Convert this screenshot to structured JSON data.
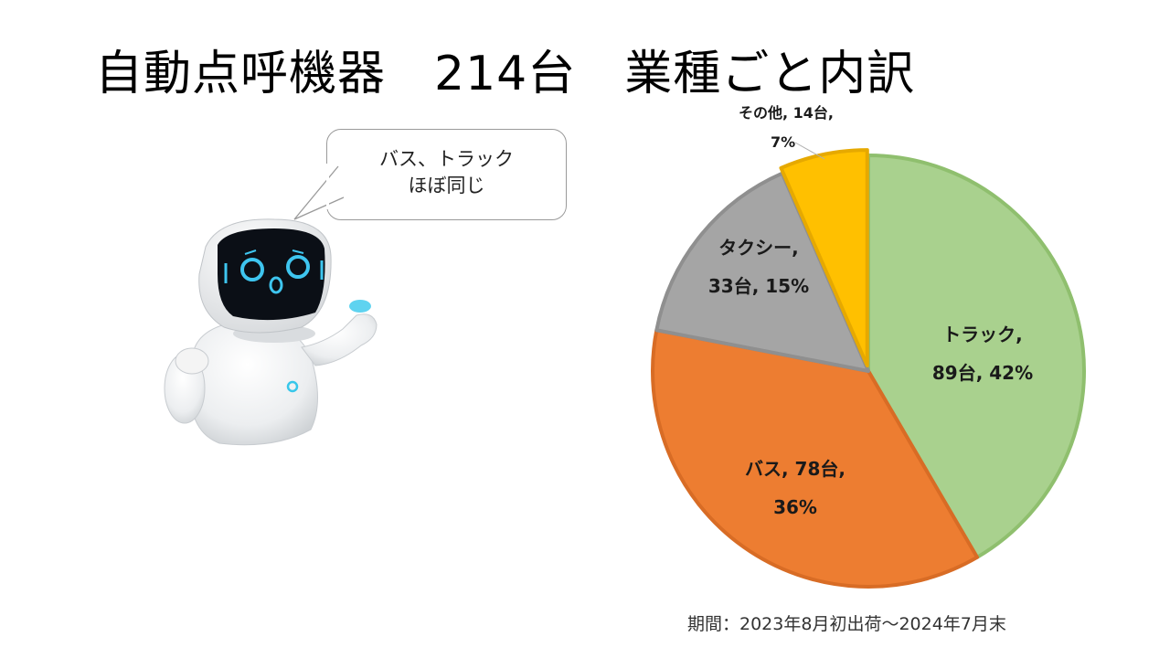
{
  "slide": {
    "title": "自動点呼機器　214台　業種ごと内訳",
    "period": "期間：2023年8月初出荷〜2024年7月末"
  },
  "bubble": {
    "line1": "バス、トラック",
    "line2": "ほぼ同じ"
  },
  "colors": {
    "truck": "#a9d18e",
    "bus": "#ed7d31",
    "taxi": "#a5a5a5",
    "other": "#ffc000"
  },
  "chart_data": {
    "type": "pie",
    "categories": [
      "トラック",
      "バス",
      "タクシー",
      "その他"
    ],
    "values": [
      89,
      78,
      33,
      14
    ],
    "percent": [
      42,
      36,
      15,
      7
    ],
    "unit": "台",
    "labels": [
      {
        "line1": "トラック,",
        "line2": "89台, 42%"
      },
      {
        "line1": "バス, 78台,",
        "line2": "36%"
      },
      {
        "line1": "タクシー,",
        "line2": "33台, 15%"
      },
      {
        "line1": "その他, 14台,",
        "line2": "7%"
      }
    ]
  }
}
